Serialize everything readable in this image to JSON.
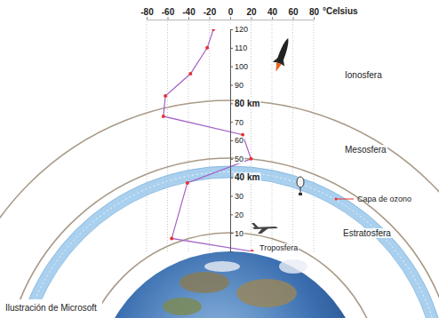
{
  "chart_data": {
    "type": "line",
    "xlabel": "°Celsius",
    "x": [
      -16,
      -22,
      -38,
      -62,
      -64,
      12,
      20,
      -41,
      -56,
      21
    ],
    "series": [
      {
        "color": "#a35fc7",
        "marker": "circle",
        "values": [
          120,
          110,
          96,
          84,
          73,
          63,
          50,
          37,
          7,
          0
        ]
      }
    ],
    "xlim": [
      -80,
      80
    ],
    "xticks": [
      -80,
      -60,
      -40,
      -20,
      0,
      20,
      40,
      60,
      80
    ],
    "ylim": [
      0,
      120
    ],
    "yticks": [
      10,
      20,
      30,
      {
        "value": 40,
        "label": "40 km"
      },
      50,
      60,
      70,
      {
        "value": 80,
        "label": "80 km"
      },
      90,
      100,
      110,
      120
    ],
    "grid": true,
    "layers": [
      "Ionosfera",
      "Mesosfera",
      "Estratosfera",
      "Troposfera"
    ],
    "annotations": [
      "Capa de ozono"
    ],
    "credit": "Ilustración de Microsoft"
  }
}
